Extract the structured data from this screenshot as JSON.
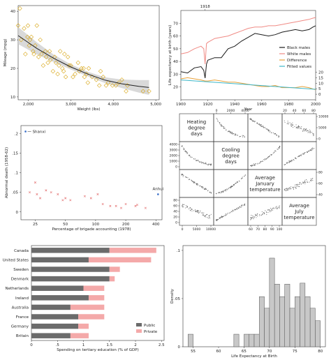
{
  "charts": [
    {
      "type": "scatter",
      "xlabel": "Weight (lbs)",
      "ylabel": "Mileage (mpg)",
      "xlim": [
        1760,
        5080
      ],
      "ylim": [
        9,
        42
      ],
      "xticks": [
        2000,
        3000,
        4000,
        5000
      ],
      "xtick_labels": [
        "2,000",
        "3,000",
        "4,000",
        "5,000"
      ],
      "yticks": [
        10,
        20,
        30,
        40
      ],
      "ytick_labels": [
        "10",
        "20",
        "30",
        "40"
      ],
      "marker_color": "#d8a616",
      "fit_color": "#222222",
      "ci_color": "#cfcfcf",
      "points": [
        [
          1760,
          35
        ],
        [
          1800,
          41
        ],
        [
          1830,
          30
        ],
        [
          1900,
          34
        ],
        [
          1930,
          25
        ],
        [
          1980,
          31
        ],
        [
          1990,
          35
        ],
        [
          2020,
          28
        ],
        [
          2040,
          30
        ],
        [
          2070,
          31
        ],
        [
          2110,
          26
        ],
        [
          2130,
          25
        ],
        [
          2160,
          28
        ],
        [
          2200,
          35
        ],
        [
          2240,
          24
        ],
        [
          2280,
          30
        ],
        [
          2310,
          25
        ],
        [
          2350,
          21
        ],
        [
          2400,
          26
        ],
        [
          2420,
          24
        ],
        [
          2460,
          22
        ],
        [
          2500,
          26
        ],
        [
          2520,
          23
        ],
        [
          2580,
          19
        ],
        [
          2620,
          24
        ],
        [
          2650,
          22
        ],
        [
          2690,
          18
        ],
        [
          2720,
          21
        ],
        [
          2750,
          26
        ],
        [
          2800,
          20
        ],
        [
          2830,
          19
        ],
        [
          2850,
          25
        ],
        [
          2880,
          17
        ],
        [
          2930,
          24
        ],
        [
          2960,
          21
        ],
        [
          3000,
          21
        ],
        [
          3050,
          17
        ],
        [
          3100,
          18
        ],
        [
          3170,
          22
        ],
        [
          3200,
          19
        ],
        [
          3250,
          20
        ],
        [
          3300,
          20
        ],
        [
          3320,
          17
        ],
        [
          3370,
          18
        ],
        [
          3400,
          15
        ],
        [
          3420,
          20
        ],
        [
          3500,
          17
        ],
        [
          3600,
          16
        ],
        [
          3670,
          14
        ],
        [
          3700,
          19
        ],
        [
          3760,
          17
        ],
        [
          3830,
          14
        ],
        [
          3880,
          15
        ],
        [
          3980,
          14
        ],
        [
          4060,
          14
        ],
        [
          4130,
          15
        ],
        [
          4200,
          16
        ],
        [
          4300,
          12
        ],
        [
          4330,
          14
        ],
        [
          4700,
          12
        ],
        [
          4840,
          12
        ]
      ],
      "fit": [
        [
          1760,
          31.5
        ],
        [
          2200,
          27
        ],
        [
          2600,
          23.5
        ],
        [
          3000,
          20.5
        ],
        [
          3400,
          18
        ],
        [
          3800,
          15.9
        ],
        [
          4200,
          14.6
        ],
        [
          4600,
          13.7
        ],
        [
          4840,
          13.3
        ]
      ],
      "ci_half": [
        3.0,
        2.1,
        1.3,
        0.9,
        0.8,
        1.0,
        1.5,
        2.2,
        2.6
      ]
    },
    {
      "type": "line",
      "annotation": "1918",
      "xlabel": "Year",
      "ylabel": "Life expectancy at birth (years)",
      "xlim": [
        1900,
        2000
      ],
      "xticks": [
        1900,
        1920,
        1940,
        1960,
        1980,
        2000
      ],
      "ylim_left": [
        10,
        80
      ],
      "yticks_left": [
        20,
        30,
        40,
        50,
        60,
        70
      ],
      "ylim_right": [
        -5,
        76
      ],
      "yticks_right": [
        0,
        5,
        10,
        15,
        20
      ],
      "legend_position": "center-right",
      "series": [
        {
          "name": "Black males",
          "color": "#1a1a1a",
          "axis": "left",
          "x": [
            1900,
            1905,
            1910,
            1915,
            1917,
            1918,
            1919,
            1920,
            1925,
            1930,
            1935,
            1940,
            1945,
            1950,
            1955,
            1960,
            1965,
            1970,
            1975,
            1980,
            1985,
            1990,
            1995,
            1998,
            2000
          ],
          "y": [
            32,
            31,
            35,
            36,
            33,
            27,
            38,
            41,
            43,
            43,
            50,
            52,
            56,
            59,
            62,
            61,
            60,
            61,
            63,
            64,
            65,
            64,
            65,
            67,
            68
          ]
        },
        {
          "name": "White males",
          "color": "#f08a84",
          "axis": "left",
          "x": [
            1900,
            1905,
            1910,
            1915,
            1917,
            1918,
            1919,
            1920,
            1925,
            1930,
            1935,
            1940,
            1945,
            1950,
            1955,
            1960,
            1965,
            1970,
            1975,
            1980,
            1985,
            1990,
            1995,
            1998,
            2000
          ],
          "y": [
            46,
            47,
            50,
            52,
            50,
            38,
            54,
            55,
            58,
            59,
            60,
            62,
            64,
            66,
            67,
            67,
            68,
            68,
            69,
            70,
            71,
            72,
            73,
            74,
            74.5
          ]
        },
        {
          "name": "Difference",
          "color": "#e8a23a",
          "axis": "right",
          "x": [
            1900,
            1905,
            1910,
            1915,
            1918,
            1920,
            1925,
            1930,
            1935,
            1940,
            1945,
            1950,
            1955,
            1960,
            1965,
            1970,
            1975,
            1980,
            1985,
            1990,
            1995,
            2000
          ],
          "y": [
            14,
            15,
            14,
            13,
            12,
            12,
            13,
            12,
            11,
            11,
            10,
            9,
            8,
            7,
            7,
            8,
            6,
            6,
            6,
            7,
            6,
            4
          ]
        },
        {
          "name": "Fitted values",
          "color": "#3cb6c8",
          "axis": "right",
          "x": [
            1900,
            2000
          ],
          "y": [
            13,
            4.5
          ]
        }
      ]
    },
    {
      "type": "scatter",
      "xlabel": "Percentage of brigade accounting (1978)",
      "ylabel": "Abnormal death (1958-62)",
      "xscale": "log",
      "xlim": [
        18,
        460
      ],
      "ylim": [
        -0.02,
        0.22
      ],
      "xticks": [
        25,
        50,
        100,
        200,
        400
      ],
      "yticks": [
        0,
        0.05,
        0.1,
        0.15,
        0.2
      ],
      "ytick_labels": [
        "0",
        ".05",
        ".1",
        ".15",
        ".2"
      ],
      "marker_color": "#e26b6b",
      "highlight_color": "#3a6fc8",
      "points": [
        [
          22,
          0.05
        ],
        [
          25,
          0.075
        ],
        [
          26,
          0.045
        ],
        [
          28,
          0.035
        ],
        [
          32,
          0.055
        ],
        [
          36,
          0.05
        ],
        [
          42,
          0.045
        ],
        [
          47,
          0.03
        ],
        [
          50,
          0.035
        ],
        [
          56,
          0.03
        ],
        [
          78,
          0.04
        ],
        [
          90,
          0.035
        ],
        [
          105,
          0.045
        ],
        [
          118,
          0.02
        ],
        [
          140,
          0.015
        ],
        [
          160,
          0.015
        ],
        [
          180,
          0.01
        ],
        [
          200,
          0.02
        ],
        [
          250,
          0.015
        ],
        [
          260,
          0.018
        ],
        [
          315,
          0.01
        ]
      ],
      "annotations": [
        {
          "label": "Shanxi",
          "x": 20,
          "y": 0.205
        },
        {
          "label": "Anhui",
          "x": 420,
          "y": 0.045
        }
      ]
    },
    {
      "type": "scatter-matrix",
      "variables": [
        "Heating degree days",
        "Cooling degree days",
        "Average January temperature",
        "Average July temperature"
      ],
      "label_lines": [
        [
          "Heating",
          "degree",
          "days"
        ],
        [
          "Cooling",
          "degree",
          "days"
        ],
        [
          "Average",
          "January",
          "temperature"
        ],
        [
          "Average",
          "July",
          "temperature"
        ]
      ],
      "top_ticks": [
        [
          "0",
          "2000",
          "4000"
        ],
        [
          "20",
          "40",
          "60",
          "80"
        ]
      ],
      "right_ticks": [
        [
          "0",
          "5000",
          "10000"
        ],
        [
          "40",
          "60",
          "80"
        ]
      ],
      "left_ticks": [
        [
          "0",
          "1000",
          "2000",
          "3000",
          "4000"
        ],
        [
          "0",
          "20",
          "40",
          "60",
          "80"
        ]
      ],
      "bottom_ticks": [
        [
          "0",
          "5000",
          "10000"
        ],
        [
          "60",
          "70",
          "80",
          "90",
          "100"
        ]
      ],
      "marker_color": "#666666"
    },
    {
      "type": "bar",
      "orientation": "horizontal",
      "stacked": true,
      "xlabel": "Spending on tertiary education (% of GDP)",
      "xlim": [
        0,
        2.55
      ],
      "xticks": [
        0,
        0.5,
        1,
        1.5,
        2,
        2.5
      ],
      "xtick_labels": [
        "0",
        ".5",
        "1",
        "1.5",
        "2",
        "2.5"
      ],
      "categories": [
        "Canada",
        "United States",
        "Sweden",
        "Denmark",
        "Netherlands",
        "Ireland",
        "Australia",
        "France",
        "Germany",
        "Britain"
      ],
      "series": [
        {
          "name": "Public",
          "color": "#6b6b6b",
          "values": [
            1.5,
            1.1,
            1.5,
            1.5,
            1.0,
            1.1,
            0.75,
            0.9,
            0.9,
            0.75
          ]
        },
        {
          "name": "Private",
          "color": "#f4a9a9",
          "values": [
            0.9,
            1.2,
            0.2,
            0.1,
            0.4,
            0.3,
            0.65,
            0.5,
            0.2,
            0.35
          ]
        }
      ],
      "legend_position": "bottom-right"
    },
    {
      "type": "bar",
      "subtype": "histogram",
      "xlabel": "Life Expectancy at Birth",
      "ylabel": "Density",
      "xlim": [
        53,
        81
      ],
      "ylim": [
        0,
        0.105
      ],
      "xticks": [
        55,
        60,
        65,
        70,
        75,
        80
      ],
      "yticks": [
        0,
        0.05,
        0.1
      ],
      "ytick_labels": [
        "0",
        ".05",
        ".1"
      ],
      "bar_color": "#c8c8c8",
      "bin_edges": [
        54,
        55,
        56,
        57,
        58,
        59,
        60,
        61,
        62,
        63,
        64,
        65,
        66,
        67,
        68,
        69,
        70,
        71,
        72,
        73,
        74,
        75,
        76,
        77,
        78,
        79,
        80
      ],
      "densities": [
        0.013,
        0,
        0,
        0,
        0,
        0,
        0,
        0,
        0,
        0.013,
        0,
        0.013,
        0.013,
        0.013,
        0.052,
        0.04,
        0.092,
        0.065,
        0.052,
        0.065,
        0.04,
        0.052,
        0.066,
        0.052,
        0.04,
        0.027
      ]
    }
  ]
}
